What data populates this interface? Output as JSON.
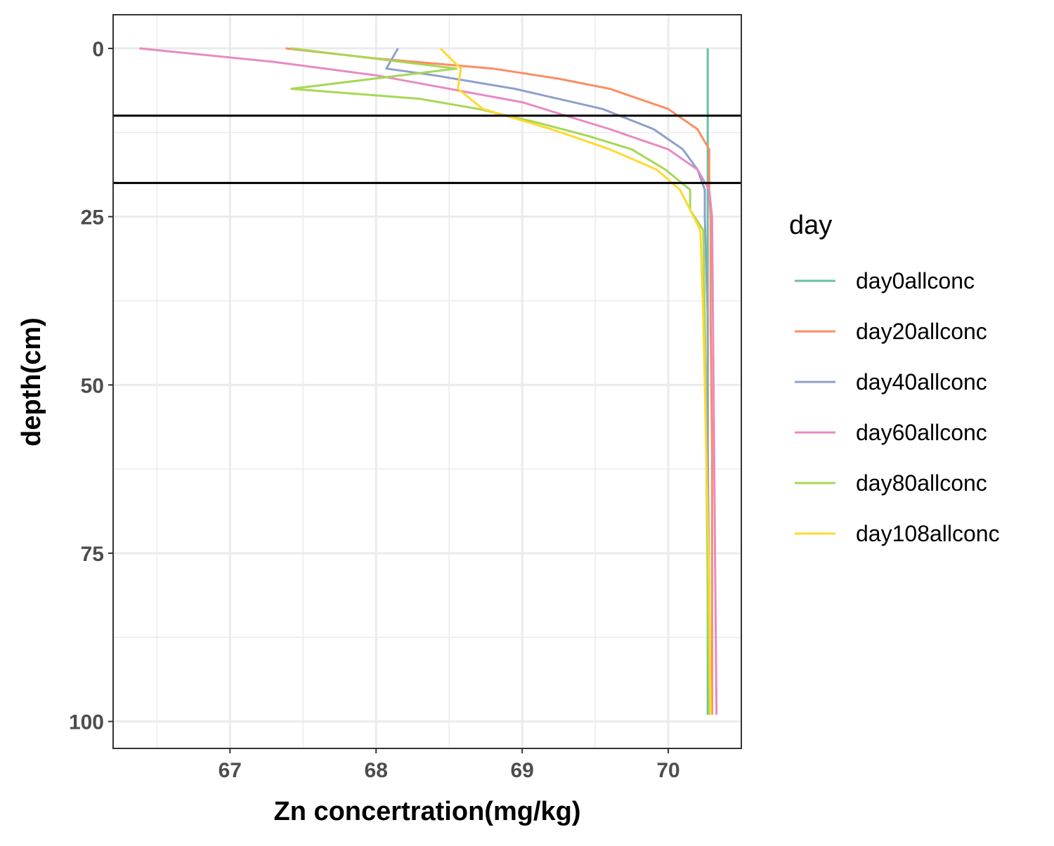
{
  "chart_data": {
    "type": "line",
    "xlabel": "Zn concertration(mg/kg)",
    "ylabel": "depth(cm)",
    "xlim": [
      66.2,
      70.5
    ],
    "ylim": [
      104,
      -5
    ],
    "y_reversed": true,
    "grid": true,
    "x_ticks": [
      67,
      68,
      69,
      70
    ],
    "x_tick_labels": [
      "67",
      "68",
      "69",
      "70"
    ],
    "y_ticks": [
      0,
      25,
      50,
      75,
      100
    ],
    "y_tick_labels": [
      "0",
      "25",
      "50",
      "75",
      "100"
    ],
    "reference_lines_y": [
      10,
      20
    ],
    "legend": {
      "title": "day",
      "position": "right"
    },
    "series": [
      {
        "name": "day0allconc",
        "color": "#66c2a5",
        "points": [
          [
            70.27,
            0
          ],
          [
            70.27,
            99
          ]
        ]
      },
      {
        "name": "day20allconc",
        "color": "#fc8d62",
        "points": [
          [
            67.38,
            0
          ],
          [
            68.0,
            1.5
          ],
          [
            68.8,
            3
          ],
          [
            69.25,
            4.5
          ],
          [
            69.6,
            6
          ],
          [
            70.0,
            9
          ],
          [
            70.2,
            12
          ],
          [
            70.28,
            15
          ],
          [
            70.28,
            18
          ],
          [
            70.28,
            21
          ],
          [
            70.29,
            25
          ],
          [
            70.29,
            40
          ],
          [
            70.3,
            60
          ],
          [
            70.3,
            80
          ],
          [
            70.3,
            99
          ]
        ]
      },
      {
        "name": "day40allconc",
        "color": "#8da0cb",
        "points": [
          [
            68.15,
            0
          ],
          [
            68.07,
            3
          ],
          [
            68.4,
            4
          ],
          [
            68.95,
            6
          ],
          [
            69.55,
            9
          ],
          [
            69.9,
            12
          ],
          [
            70.1,
            15
          ],
          [
            70.2,
            18
          ],
          [
            70.25,
            21
          ],
          [
            70.25,
            25
          ],
          [
            70.27,
            40
          ],
          [
            70.27,
            60
          ],
          [
            70.28,
            80
          ],
          [
            70.28,
            99
          ]
        ]
      },
      {
        "name": "day60allconc",
        "color": "#e78ac3",
        "points": [
          [
            66.38,
            0
          ],
          [
            67.3,
            2
          ],
          [
            68.0,
            4
          ],
          [
            68.5,
            6
          ],
          [
            69.0,
            8
          ],
          [
            69.6,
            12
          ],
          [
            70.0,
            15
          ],
          [
            70.2,
            18
          ],
          [
            70.28,
            21
          ],
          [
            70.3,
            25
          ],
          [
            70.31,
            50
          ],
          [
            70.32,
            75
          ],
          [
            70.33,
            99
          ]
        ]
      },
      {
        "name": "day80allconc",
        "color": "#a6d854",
        "points": [
          [
            67.42,
            0
          ],
          [
            68.55,
            3
          ],
          [
            67.42,
            6
          ],
          [
            68.3,
            7.5
          ],
          [
            68.7,
            9
          ],
          [
            69.1,
            11
          ],
          [
            69.45,
            13
          ],
          [
            69.75,
            15
          ],
          [
            69.98,
            18
          ],
          [
            70.15,
            21
          ],
          [
            70.15,
            24
          ],
          [
            70.24,
            27
          ],
          [
            70.25,
            40
          ],
          [
            70.26,
            60
          ],
          [
            70.27,
            80
          ],
          [
            70.28,
            99
          ]
        ]
      },
      {
        "name": "day108allconc",
        "color": "#ffd92f",
        "points": [
          [
            68.44,
            0
          ],
          [
            68.58,
            3
          ],
          [
            68.56,
            6
          ],
          [
            68.73,
            9
          ],
          [
            69.2,
            12
          ],
          [
            69.6,
            15
          ],
          [
            69.92,
            18
          ],
          [
            70.08,
            21
          ],
          [
            70.15,
            24
          ],
          [
            70.22,
            27
          ],
          [
            70.24,
            40
          ],
          [
            70.26,
            60
          ],
          [
            70.28,
            80
          ],
          [
            70.29,
            99
          ]
        ]
      }
    ]
  }
}
